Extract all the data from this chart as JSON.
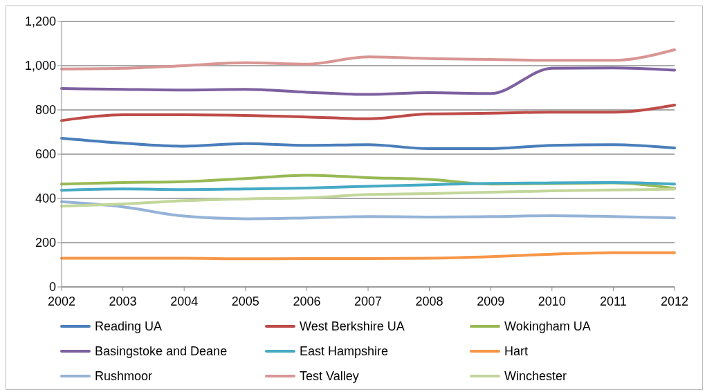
{
  "chart_data": {
    "type": "line",
    "categories": [
      "2002",
      "2003",
      "2004",
      "2005",
      "2006",
      "2007",
      "2008",
      "2009",
      "2010",
      "2011",
      "2012"
    ],
    "series": [
      {
        "name": "Reading UA",
        "color": "#4a7ebb",
        "values": [
          672,
          650,
          636,
          648,
          640,
          643,
          625,
          625,
          640,
          643,
          628
        ]
      },
      {
        "name": "West Berkshire UA",
        "color": "#be4b48",
        "values": [
          752,
          778,
          778,
          775,
          768,
          760,
          782,
          785,
          790,
          790,
          822
        ]
      },
      {
        "name": "Wokingham UA",
        "color": "#98b954",
        "values": [
          465,
          472,
          476,
          490,
          505,
          494,
          486,
          465,
          null,
          470,
          445
        ]
      },
      {
        "name": "Basingstoke and Deane",
        "color": "#7d60a0",
        "values": [
          897,
          893,
          890,
          893,
          880,
          870,
          878,
          874,
          988,
          990,
          980
        ]
      },
      {
        "name": "East Hampshire",
        "color": "#46aac5",
        "values": [
          437,
          443,
          440,
          443,
          447,
          455,
          462,
          468,
          470,
          472,
          465
        ]
      },
      {
        "name": "Hart",
        "color": "#f79646",
        "values": [
          130,
          130,
          130,
          127,
          128,
          128,
          130,
          137,
          148,
          155,
          155
        ]
      },
      {
        "name": "Rushmoor",
        "color": "#95b3d7",
        "values": [
          385,
          362,
          320,
          308,
          312,
          318,
          316,
          318,
          322,
          318,
          312
        ]
      },
      {
        "name": "Test Valley",
        "color": "#d99694",
        "values": [
          985,
          988,
          1000,
          1013,
          1007,
          1040,
          1032,
          1028,
          1024,
          1024,
          1072
        ]
      },
      {
        "name": "Winchester",
        "color": "#c3d69b",
        "values": [
          365,
          375,
          390,
          398,
          402,
          418,
          422,
          428,
          434,
          438,
          442
        ]
      }
    ],
    "ylim": [
      0,
      1200
    ],
    "yticks": [
      0,
      200,
      400,
      600,
      800,
      {
        "value": 1000,
        "label": "1,000"
      },
      {
        "value": 1200,
        "label": "1,200"
      }
    ],
    "grid": "y",
    "legend": "bottom",
    "marker": "none",
    "line_style": "solid"
  }
}
